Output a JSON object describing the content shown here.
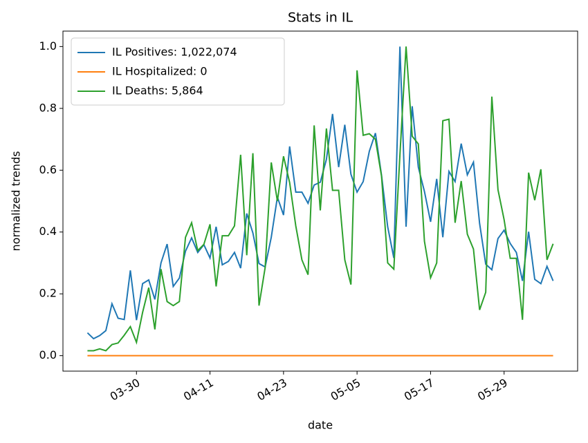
{
  "chart_data": {
    "type": "line",
    "title": "Stats in IL",
    "xlabel": "date",
    "ylabel": "normalized trends",
    "x": [
      "03-22",
      "03-23",
      "03-24",
      "03-25",
      "03-26",
      "03-27",
      "03-28",
      "03-29",
      "03-30",
      "03-31",
      "04-01",
      "04-02",
      "04-03",
      "04-04",
      "04-05",
      "04-06",
      "04-07",
      "04-08",
      "04-09",
      "04-10",
      "04-11",
      "04-12",
      "04-13",
      "04-14",
      "04-15",
      "04-16",
      "04-17",
      "04-18",
      "04-19",
      "04-20",
      "04-21",
      "04-22",
      "04-23",
      "04-24",
      "04-25",
      "04-26",
      "04-27",
      "04-28",
      "04-29",
      "04-30",
      "05-01",
      "05-02",
      "05-03",
      "05-04",
      "05-05",
      "05-06",
      "05-07",
      "05-08",
      "05-09",
      "05-10",
      "05-11",
      "05-12",
      "05-13",
      "05-14",
      "05-15",
      "05-16",
      "05-17",
      "05-18",
      "05-19",
      "05-20",
      "05-21",
      "05-22",
      "05-23",
      "05-24",
      "05-25",
      "05-26",
      "05-27",
      "05-28",
      "05-29",
      "05-30",
      "05-31",
      "06-01",
      "06-02",
      "06-03",
      "06-04",
      "06-05",
      "06-06"
    ],
    "xlim": [
      "03-18",
      "06-10"
    ],
    "xticks": [
      "03-30",
      "04-11",
      "04-23",
      "05-05",
      "05-17",
      "05-29"
    ],
    "ylim": [
      -0.05,
      1.05
    ],
    "yticks": [
      {
        "value": 0,
        "label": "0.0"
      },
      {
        "value": 0.2,
        "label": "0.2"
      },
      {
        "value": 0.4,
        "label": "0.4"
      },
      {
        "value": 0.6,
        "label": "0.6"
      },
      {
        "value": 0.8,
        "label": "0.8"
      },
      {
        "value": 1,
        "label": "1.0"
      }
    ],
    "legend": "upper left",
    "series": [
      {
        "name": "IL Positives: 1,022,074",
        "color": "#1f77b4",
        "values": [
          0.074,
          0.055,
          0.065,
          0.081,
          0.168,
          0.121,
          0.117,
          0.276,
          0.115,
          0.233,
          0.245,
          0.182,
          0.3,
          0.361,
          0.224,
          0.251,
          0.338,
          0.381,
          0.334,
          0.359,
          0.316,
          0.417,
          0.294,
          0.305,
          0.334,
          0.283,
          0.46,
          0.397,
          0.298,
          0.287,
          0.383,
          0.513,
          0.455,
          0.677,
          0.529,
          0.529,
          0.493,
          0.552,
          0.561,
          0.635,
          0.782,
          0.61,
          0.747,
          0.587,
          0.529,
          0.563,
          0.661,
          0.72,
          0.583,
          0.417,
          0.316,
          1.0,
          0.417,
          0.807,
          0.61,
          0.531,
          0.433,
          0.572,
          0.383,
          0.596,
          0.563,
          0.686,
          0.585,
          0.626,
          0.428,
          0.296,
          0.278,
          0.379,
          0.406,
          0.363,
          0.334,
          0.242,
          0.401,
          0.247,
          0.233,
          0.289,
          0.242
        ]
      },
      {
        "name": "IL Hospitalized: 0",
        "color": "#ff7f0e",
        "values": [
          0,
          0,
          0,
          0,
          0,
          0,
          0,
          0,
          0,
          0,
          0,
          0,
          0,
          0,
          0,
          0,
          0,
          0,
          0,
          0,
          0,
          0,
          0,
          0,
          0,
          0,
          0,
          0,
          0,
          0,
          0,
          0,
          0,
          0,
          0,
          0,
          0,
          0,
          0,
          0,
          0,
          0,
          0,
          0,
          0,
          0,
          0,
          0,
          0,
          0,
          0,
          0,
          0,
          0,
          0,
          0,
          0,
          0,
          0,
          0,
          0,
          0,
          0,
          0,
          0,
          0,
          0,
          0,
          0,
          0,
          0,
          0,
          0,
          0,
          0,
          0,
          0
        ]
      },
      {
        "name": "IL Deaths: 5,864",
        "color": "#2ca02c",
        "values": [
          0.016,
          0.016,
          0.022,
          0.016,
          0.036,
          0.041,
          0.066,
          0.094,
          0.043,
          0.14,
          0.22,
          0.085,
          0.28,
          0.175,
          0.162,
          0.175,
          0.383,
          0.43,
          0.34,
          0.36,
          0.425,
          0.224,
          0.388,
          0.388,
          0.42,
          0.65,
          0.325,
          0.655,
          0.162,
          0.285,
          0.625,
          0.5,
          0.645,
          0.56,
          0.42,
          0.31,
          0.262,
          0.745,
          0.47,
          0.735,
          0.535,
          0.535,
          0.31,
          0.23,
          0.923,
          0.713,
          0.718,
          0.7,
          0.58,
          0.3,
          0.28,
          0.65,
          1.0,
          0.71,
          0.685,
          0.37,
          0.252,
          0.3,
          0.76,
          0.765,
          0.43,
          0.565,
          0.393,
          0.345,
          0.148,
          0.205,
          0.838,
          0.537,
          0.44,
          0.315,
          0.315,
          0.116,
          0.592,
          0.503,
          0.603,
          0.31,
          0.362
        ]
      }
    ]
  }
}
